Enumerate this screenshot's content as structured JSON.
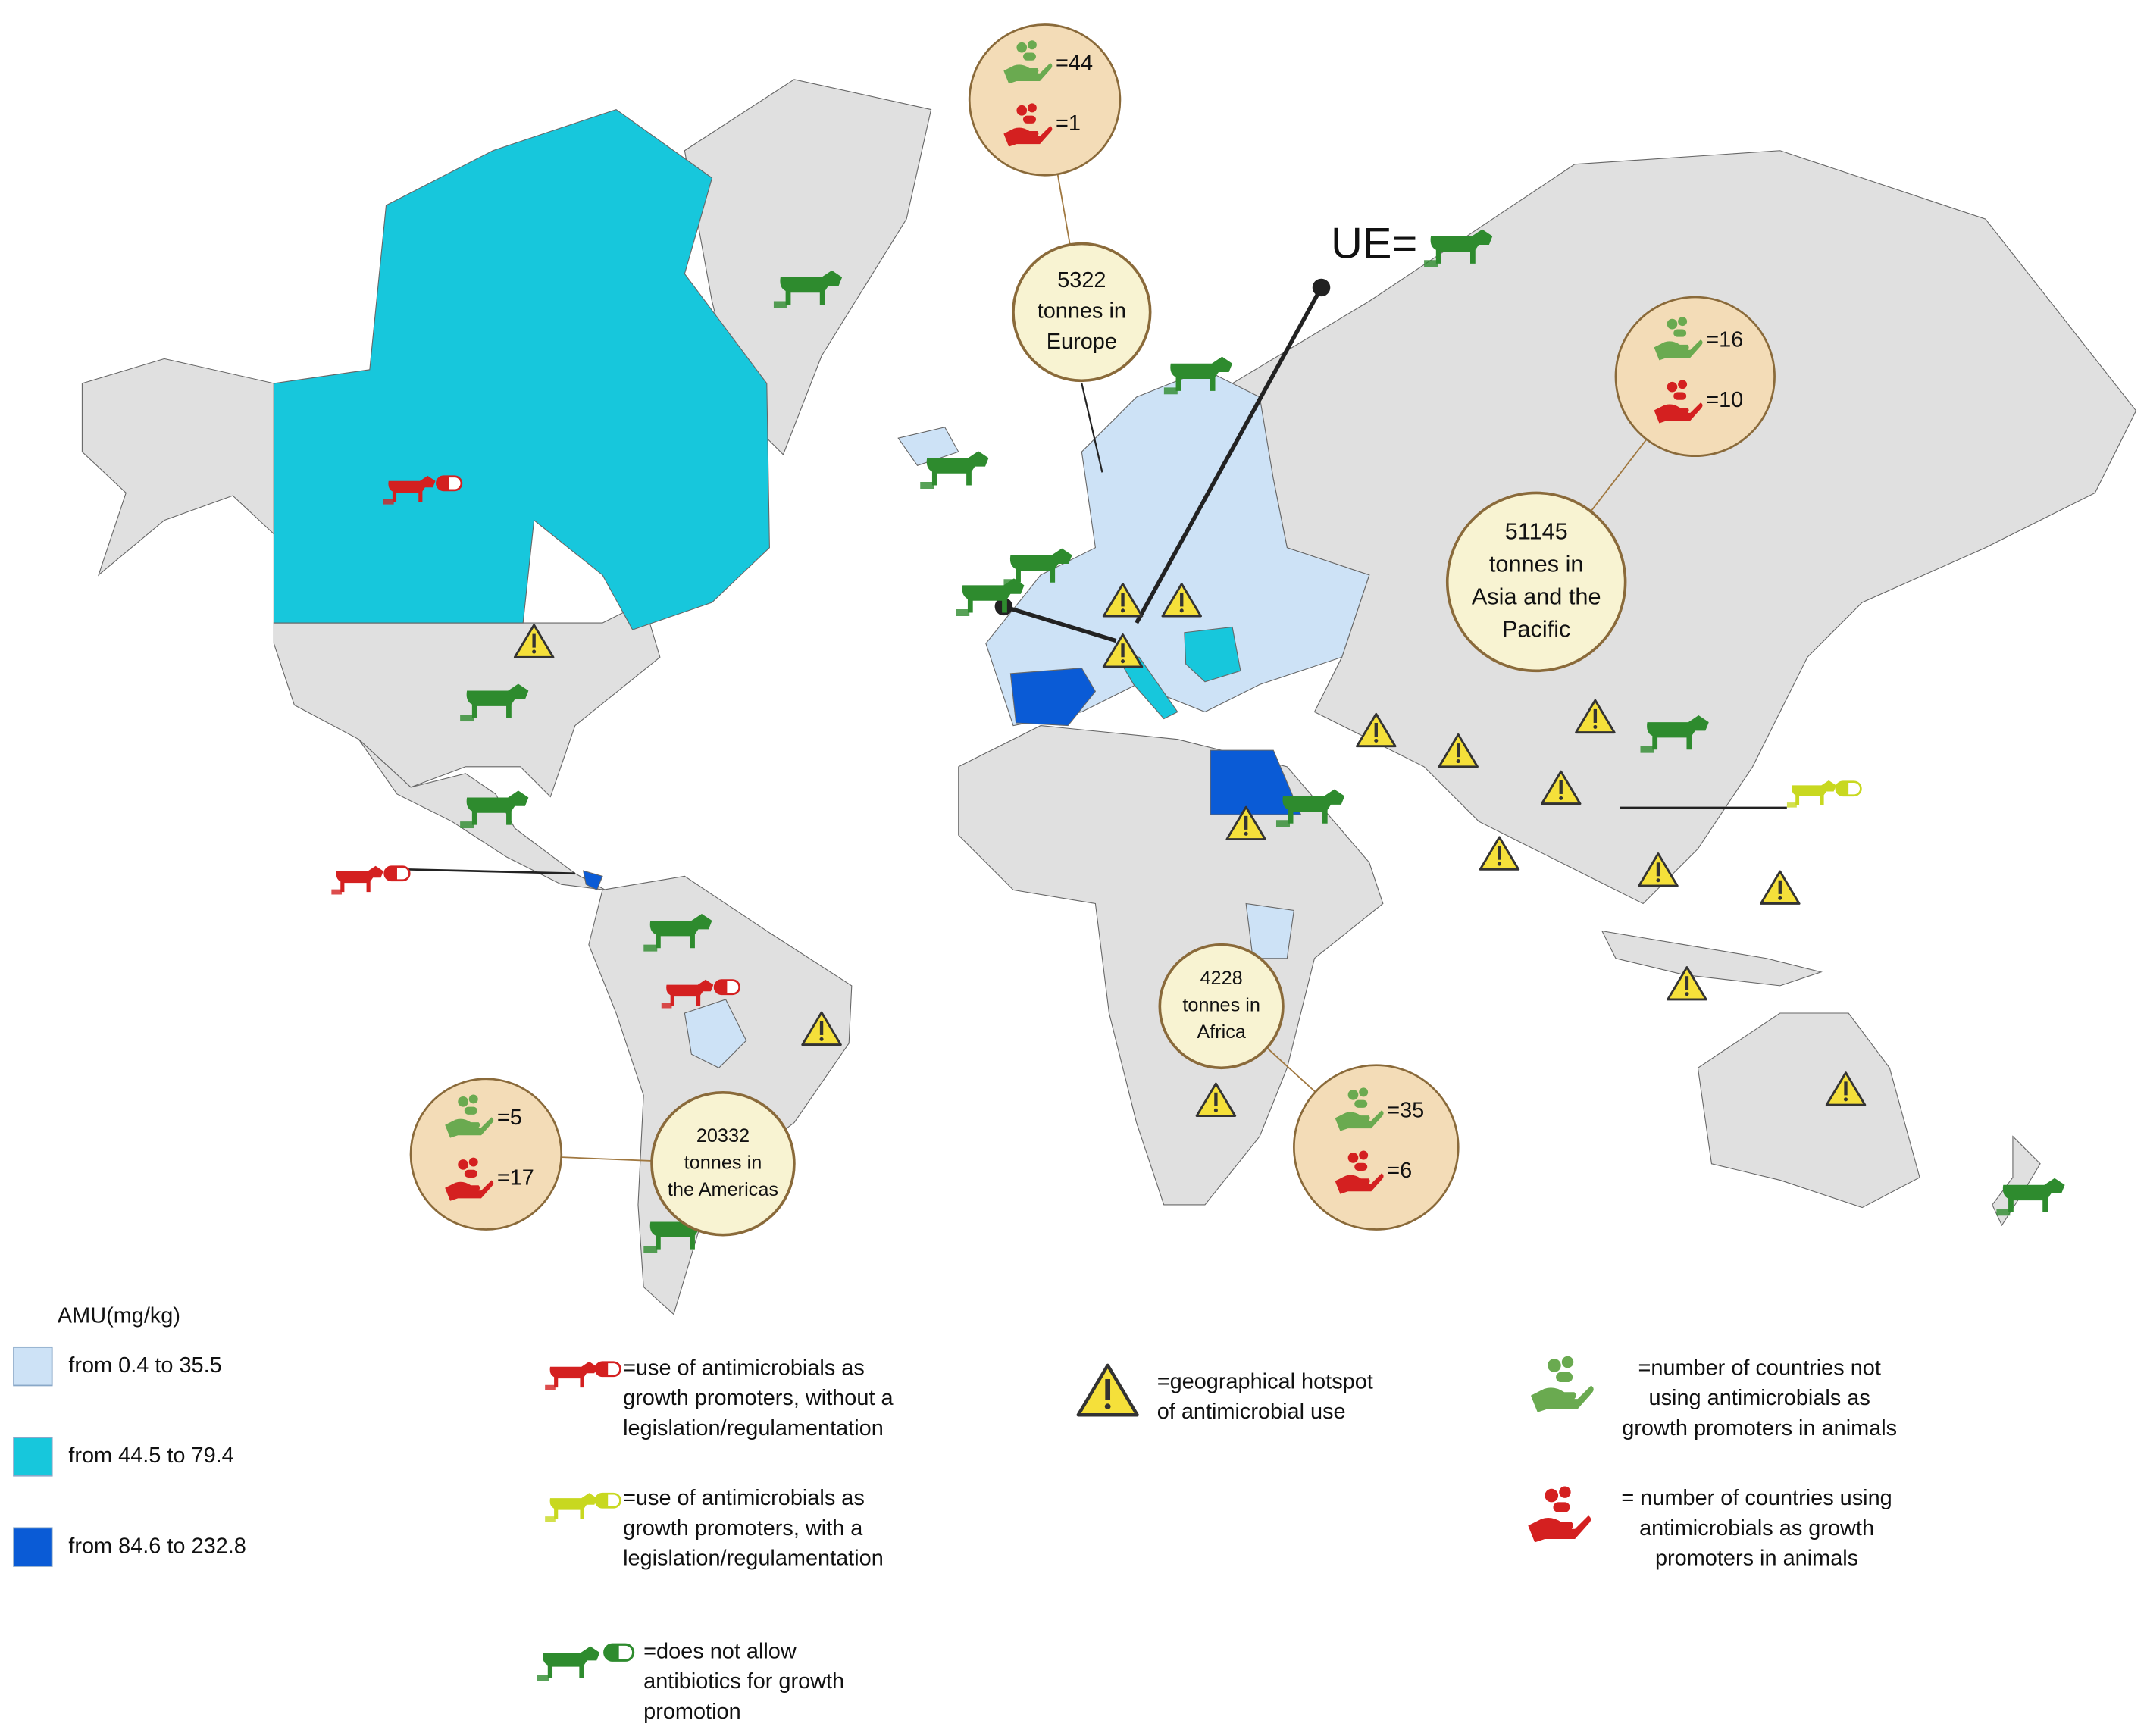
{
  "eu_label": "UE=",
  "regions": [
    {
      "lines": [
        "5322",
        "tonnes in",
        "Europe"
      ],
      "not_using": "=44",
      "using": "=1"
    },
    {
      "lines": [
        "51145",
        "tonnes in",
        "Asia and the",
        "Pacific"
      ],
      "not_using": "=16",
      "using": "=10"
    },
    {
      "lines": [
        "20332",
        "tonnes in",
        "the Americas"
      ],
      "not_using": "=5",
      "using": "=17"
    },
    {
      "lines": [
        "4228",
        "tonnes in",
        "Africa"
      ],
      "not_using": "=35",
      "using": "=6"
    }
  ],
  "amu_legend": {
    "title": "AMU(mg/kg)",
    "items": [
      {
        "label": "from 0.4 to 35.5",
        "color": "#cde2f6"
      },
      {
        "label": "from 44.5 to 79.4",
        "color": "#17c7dc"
      },
      {
        "label": "from 84.6 to 232.8",
        "color": "#0a5bd6"
      }
    ]
  },
  "symbol_legend": [
    [
      "=use of antimicrobials as",
      "growth promoters, without a",
      "legislation/regulamentation"
    ],
    [
      "=use of antimicrobials as",
      "growth promoters, with a",
      "legislation/regulamentation"
    ],
    [
      "=does not allow",
      "antibiotics for growth",
      "promotion"
    ],
    [
      "=geographical hotspot",
      "of antimicrobial use"
    ],
    [
      "=number of countries not",
      "using antimicrobials as",
      "growth promoters in animals"
    ],
    [
      "= number of countries using",
      "antimicrobials as growth",
      "promoters in animals"
    ]
  ]
}
